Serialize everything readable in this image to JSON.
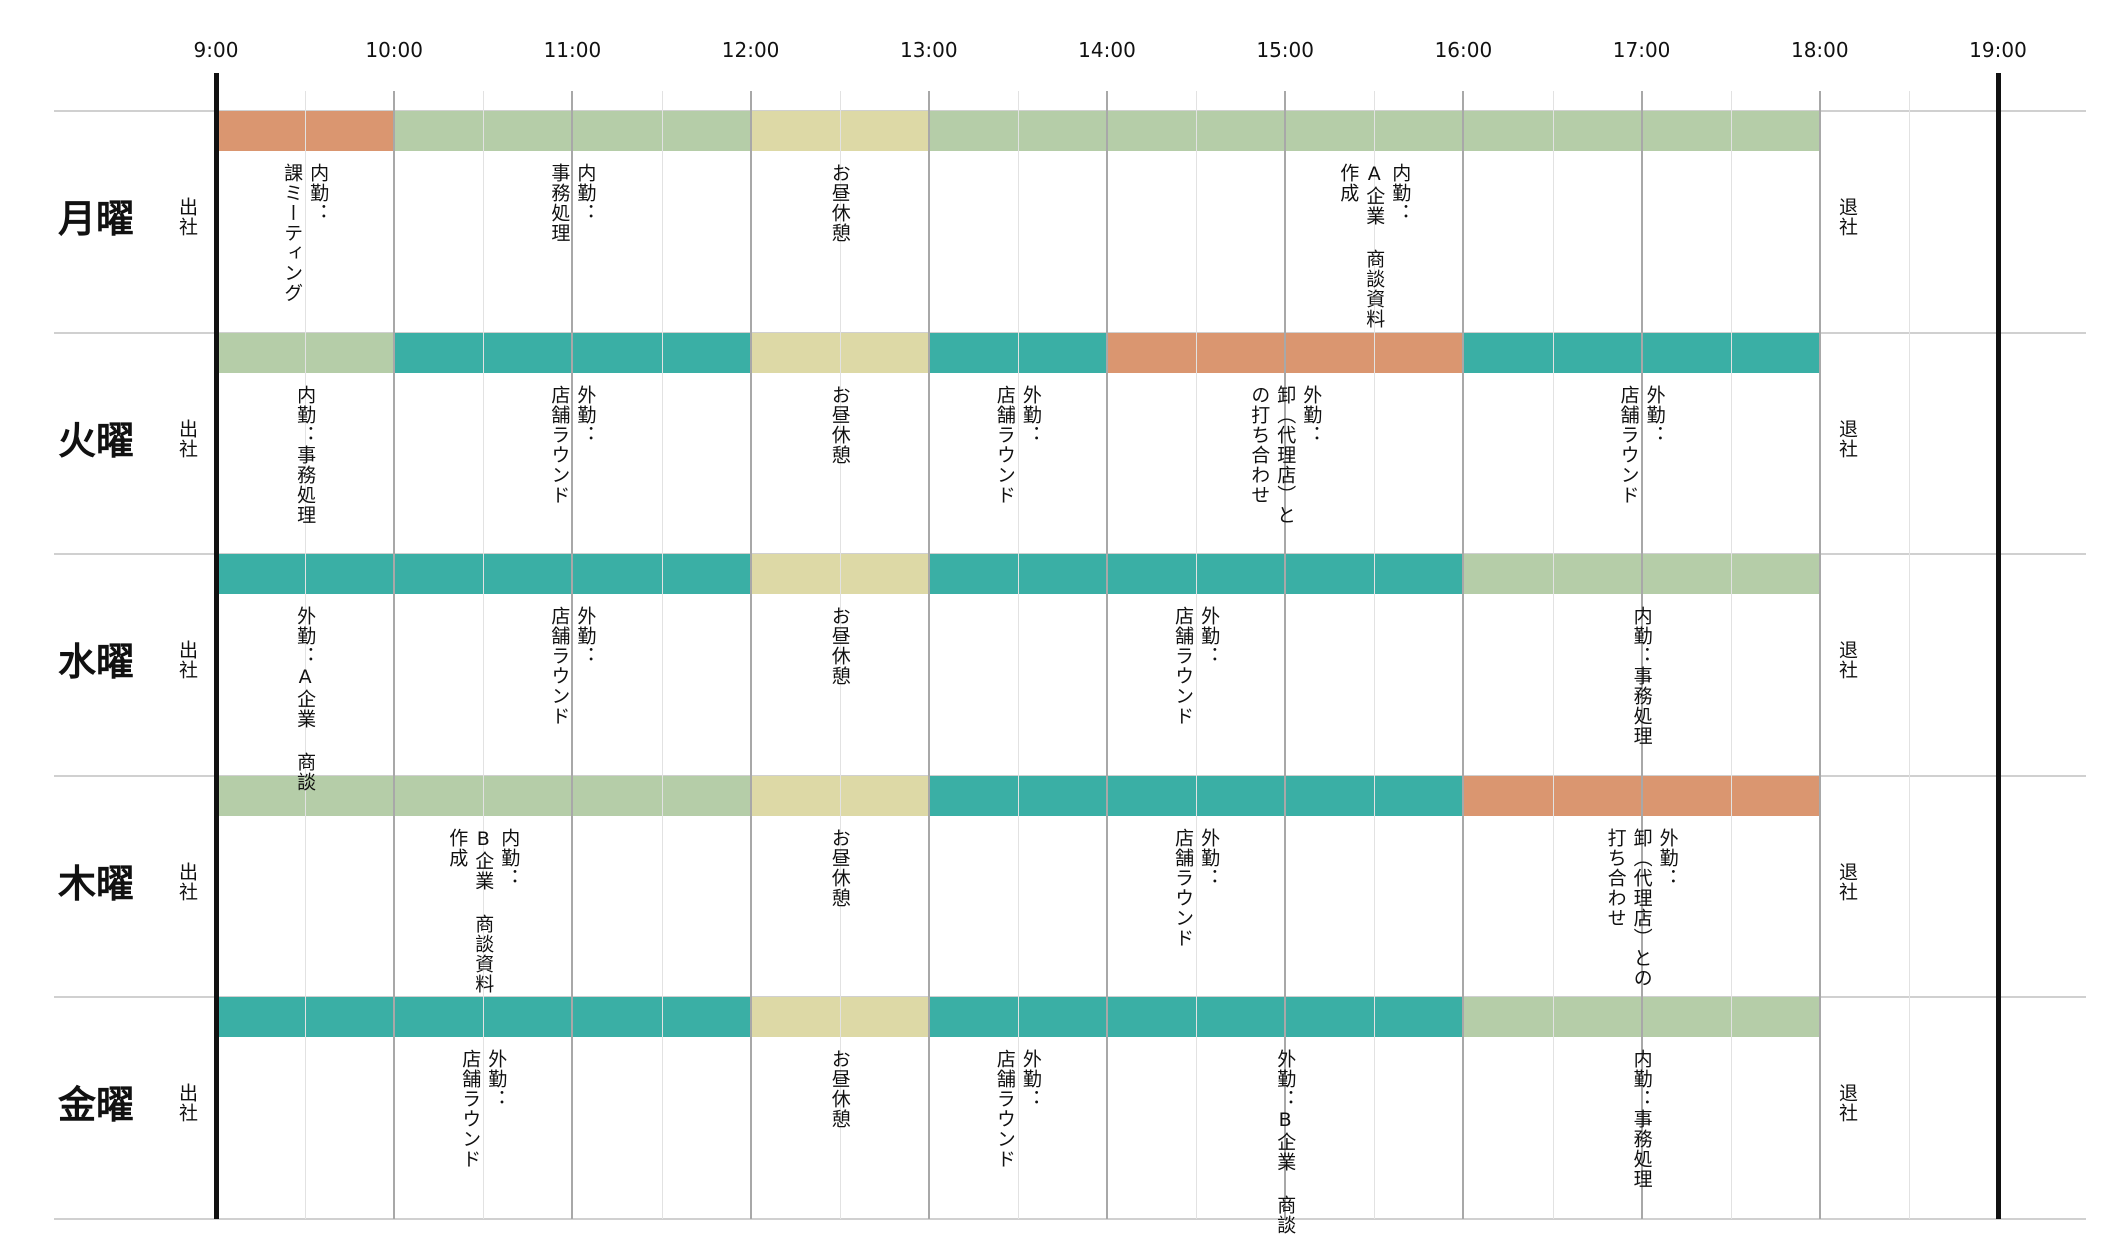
{
  "colors": {
    "meeting": "#da9670",
    "office": "#b5cda8",
    "lunch": "#ddd9a6",
    "field": "#3aafa5"
  },
  "timeline": {
    "start_hour": 9,
    "end_hour": 19,
    "hours": [
      "9:00",
      "10:00",
      "11:00",
      "12:00",
      "13:00",
      "14:00",
      "15:00",
      "16:00",
      "17:00",
      "18:00",
      "19:00"
    ]
  },
  "days": [
    {
      "name": "月曜",
      "arrive": "出社",
      "leave": "退社",
      "blocks": [
        {
          "start": 9,
          "end": 10,
          "color": "meeting",
          "label": "内勤：\n課ミーティング",
          "label_at": 9.5
        },
        {
          "start": 10,
          "end": 12,
          "color": "office",
          "label": "内勤：\n事務処理",
          "label_at": 11
        },
        {
          "start": 12,
          "end": 13,
          "color": "lunch",
          "label": "お昼休憩",
          "label_at": 12.5
        },
        {
          "start": 13,
          "end": 18,
          "color": "office",
          "label": "内勤：\nA企業 商談資料\n作成",
          "label_at": 15.5
        }
      ]
    },
    {
      "name": "火曜",
      "arrive": "出社",
      "leave": "退社",
      "blocks": [
        {
          "start": 9,
          "end": 10,
          "color": "office",
          "label": "内勤：事務処理",
          "label_at": 9.5
        },
        {
          "start": 10,
          "end": 12,
          "color": "field",
          "label": "外勤：\n店舗ラウンド",
          "label_at": 11
        },
        {
          "start": 12,
          "end": 13,
          "color": "lunch",
          "label": "お昼休憩",
          "label_at": 12.5
        },
        {
          "start": 13,
          "end": 14,
          "color": "field",
          "label": "外勤：\n店舗ラウンド",
          "label_at": 13.5
        },
        {
          "start": 14,
          "end": 16,
          "color": "meeting",
          "label": "外勤：\n卸（代理店）と\nの打ち合わせ",
          "label_at": 15
        },
        {
          "start": 16,
          "end": 18,
          "color": "field",
          "label": "外勤：\n店舗ラウンド",
          "label_at": 17
        }
      ]
    },
    {
      "name": "水曜",
      "arrive": "出社",
      "leave": "退社",
      "blocks": [
        {
          "start": 9,
          "end": 12,
          "color": "field",
          "label": "外勤：A企業 商談",
          "label_at": 9.5
        },
        {
          "start": 12,
          "end": 13,
          "color": "lunch",
          "label": "お昼休憩",
          "label_at": 12.5
        },
        {
          "start": 13,
          "end": 16,
          "color": "field",
          "label": "外勤：\n店舗ラウンド",
          "label_at": 14.5
        },
        {
          "start": 16,
          "end": 18,
          "color": "office",
          "label": "内勤：事務処理",
          "label_at": 17
        }
      ],
      "extra_labels": [
        {
          "label": "外勤：\n店舗ラウンド",
          "label_at": 11
        }
      ]
    },
    {
      "name": "木曜",
      "arrive": "出社",
      "leave": "退社",
      "blocks": [
        {
          "start": 9,
          "end": 12,
          "color": "office",
          "label": "内勤：\nB企業 商談資料\n作成",
          "label_at": 10.5
        },
        {
          "start": 12,
          "end": 13,
          "color": "lunch",
          "label": "お昼休憩",
          "label_at": 12.5
        },
        {
          "start": 13,
          "end": 16,
          "color": "field",
          "label": "外勤：\n店舗ラウンド",
          "label_at": 14.5
        },
        {
          "start": 16,
          "end": 18,
          "color": "meeting",
          "label": "外勤：\n卸（代理店）との\n打ち合わせ",
          "label_at": 17
        }
      ]
    },
    {
      "name": "金曜",
      "arrive": "出社",
      "leave": "退社",
      "blocks": [
        {
          "start": 9,
          "end": 12,
          "color": "field",
          "label": "外勤：\n店舗ラウンド",
          "label_at": 10.5
        },
        {
          "start": 12,
          "end": 13,
          "color": "lunch",
          "label": "お昼休憩",
          "label_at": 12.5
        },
        {
          "start": 13,
          "end": 14,
          "color": "field",
          "label": "外勤：\n店舗ラウンド",
          "label_at": 13.5
        },
        {
          "start": 14,
          "end": 16,
          "color": "field",
          "label": "外勤：B企業 商談",
          "label_at": 15
        },
        {
          "start": 16,
          "end": 18,
          "color": "office",
          "label": "内勤：事務処理",
          "label_at": 17
        }
      ]
    }
  ]
}
